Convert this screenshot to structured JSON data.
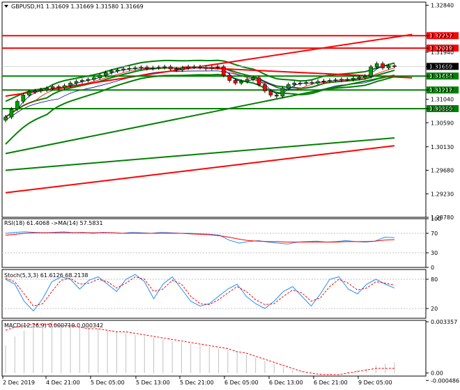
{
  "chart_data": [
    {
      "type": "candlestick",
      "title": "GBPUSD,H1",
      "ohlc_header": {
        "symbol_label": "GBPUSD,H1",
        "open": "1.31609",
        "high": "1.31669",
        "low": "1.31580",
        "close": "1.31669"
      },
      "ylim": [
        1.2878,
        1.329
      ],
      "y_ticks": [
        "1.32840",
        "1.32257",
        "1.32019",
        "1.31940",
        "1.31669",
        "1.31484",
        "1.31217",
        "1.31040",
        "1.30860",
        "1.30590",
        "1.30130",
        "1.29680",
        "1.29230",
        "1.28780"
      ],
      "x_ticks": [
        "2 Dec 2019",
        "4 Dec 21:00",
        "5 Dec 05:00",
        "5 Dec 13:00",
        "5 Dec 21:00",
        "6 Dec 05:00",
        "6 Dec 13:00",
        "6 Dec 21:00",
        "9 Dec 05:00"
      ],
      "current_price": "1.31669",
      "horizontal_levels": [
        {
          "value": 1.32257,
          "label": "1.32257",
          "color": "#ff0000"
        },
        {
          "value": 1.32019,
          "label": "1.32019",
          "color": "#ff0000"
        },
        {
          "value": 1.31484,
          "label": "1.31484",
          "color": "#008000"
        },
        {
          "value": 1.31217,
          "label": "1.31217",
          "color": "#008000"
        },
        {
          "value": 1.3086,
          "label": "1.30860",
          "color": "#008000"
        }
      ],
      "candles_close": [
        1.307,
        1.3085,
        1.31,
        1.3112,
        1.3118,
        1.312,
        1.3122,
        1.3125,
        1.3128,
        1.3126,
        1.313,
        1.3135,
        1.3138,
        1.314,
        1.3142,
        1.3145,
        1.315,
        1.3155,
        1.3158,
        1.316,
        1.3162,
        1.3163,
        1.3164,
        1.3165,
        1.3163,
        1.3164,
        1.3165,
        1.3166,
        1.3162,
        1.316,
        1.3164,
        1.3166,
        1.3166,
        1.3165,
        1.3163,
        1.3165,
        1.3166,
        1.315,
        1.314,
        1.3135,
        1.3138,
        1.3142,
        1.3145,
        1.3132,
        1.312,
        1.3112,
        1.311,
        1.3125,
        1.3132,
        1.3135,
        1.3134,
        1.3136,
        1.3135,
        1.3138,
        1.3139,
        1.314,
        1.3141,
        1.3142,
        1.3142,
        1.3144,
        1.3146,
        1.3148,
        1.3166,
        1.3172,
        1.3164,
        1.3168,
        1.3167
      ]
    },
    {
      "type": "line",
      "title": "RSI(18) 61.4068 ->MA(14) 57.5831",
      "ylim": [
        0,
        100
      ],
      "y_ticks": [
        "100",
        "70",
        "30",
        "0"
      ],
      "series": [
        {
          "name": "RSI(18)",
          "color": "#1e90ff",
          "values": [
            70,
            72,
            73,
            72,
            71,
            72,
            73,
            71,
            72,
            70,
            72,
            71,
            70,
            72,
            71,
            70,
            72,
            71,
            70,
            70,
            69,
            68,
            66,
            56,
            50,
            53,
            55,
            52,
            50,
            48,
            52,
            53,
            54,
            52,
            53,
            55,
            53,
            52,
            54,
            62,
            61
          ]
        },
        {
          "name": "MA(14)",
          "color": "#ff0000",
          "values": [
            66,
            68,
            70,
            71,
            71,
            71,
            71,
            71,
            71,
            71,
            71,
            71,
            70,
            70,
            70,
            70,
            70,
            70,
            70,
            69,
            68,
            67,
            65,
            62,
            58,
            55,
            54,
            53,
            53,
            52,
            52,
            52,
            52,
            52,
            52,
            53,
            53,
            53,
            54,
            56,
            57
          ]
        }
      ]
    },
    {
      "type": "line",
      "title": "Stoch(5,3,3) 61.6126 68.2138",
      "ylim": [
        0,
        100
      ],
      "y_ticks": [
        "80",
        "20"
      ],
      "series": [
        {
          "name": "%K",
          "color": "#1e90ff",
          "values": [
            80,
            70,
            35,
            15,
            40,
            75,
            85,
            80,
            60,
            78,
            85,
            70,
            55,
            80,
            90,
            75,
            40,
            70,
            85,
            60,
            35,
            25,
            30,
            45,
            60,
            70,
            45,
            30,
            20,
            35,
            55,
            65,
            45,
            25,
            50,
            80,
            85,
            60,
            50,
            70,
            80,
            70,
            62
          ]
        },
        {
          "name": "%D",
          "color": "#ff0000",
          "values": [
            82,
            75,
            50,
            25,
            30,
            55,
            78,
            82,
            70,
            72,
            80,
            75,
            62,
            72,
            85,
            80,
            55,
            60,
            78,
            70,
            45,
            30,
            28,
            38,
            52,
            65,
            55,
            38,
            28,
            30,
            45,
            58,
            52,
            35,
            42,
            65,
            80,
            72,
            58,
            62,
            75,
            72,
            68
          ]
        }
      ]
    },
    {
      "type": "bar",
      "title": "MACD(12,26,9) 0.000719 0.000342",
      "ylim": [
        -0.0002,
        0.00345
      ],
      "y_ticks": [
        "0.003357",
        "0.00",
        "-0.000486"
      ],
      "series": [
        {
          "name": "MACD",
          "color": "#c0c0c0",
          "values": [
            0.0018,
            0.0024,
            0.0028,
            0.0031,
            0.0033,
            0.0034,
            0.0033,
            0.0032,
            0.0031,
            0.003,
            0.0029,
            0.0028,
            0.0027,
            0.0026,
            0.0025,
            0.0024,
            0.0023,
            0.0022,
            0.0021,
            0.002,
            0.0019,
            0.0018,
            0.0017,
            0.0016,
            0.0015,
            0.0014,
            0.0012,
            0.001,
            0.0008,
            0.0006,
            0.0004,
            0.0002,
            0.0001,
            0.0,
            -0.0001,
            -0.0001,
            0.0,
            0.0001,
            0.0002,
            0.0003,
            0.0005,
            0.0006,
            0.0007
          ]
        },
        {
          "name": "Signal",
          "color": "#ff0000",
          "values": [
            0.0028,
            0.003,
            0.0031,
            0.0032,
            0.0032,
            0.0032,
            0.0031,
            0.0031,
            0.003,
            0.0029,
            0.0029,
            0.0028,
            0.0027,
            0.0027,
            0.0026,
            0.0025,
            0.0024,
            0.0023,
            0.0022,
            0.0021,
            0.002,
            0.0019,
            0.0018,
            0.0017,
            0.0016,
            0.0014,
            0.0013,
            0.0011,
            0.0009,
            0.0007,
            0.0005,
            0.0003,
            0.0001,
            0.0,
            -0.0001,
            -0.0001,
            -0.0001,
            0.0,
            0.0001,
            0.0002,
            0.0003,
            0.0003,
            0.0003
          ]
        }
      ]
    }
  ]
}
